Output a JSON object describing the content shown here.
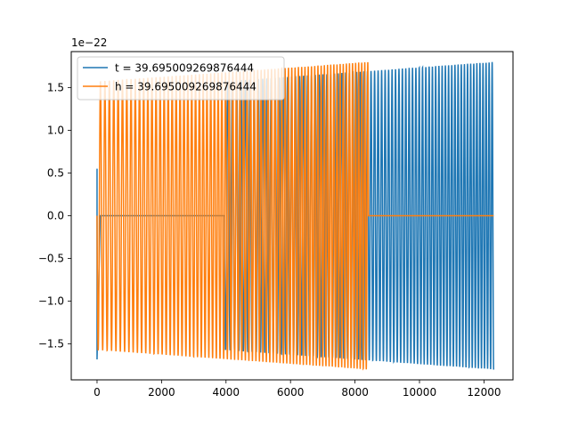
{
  "chart_data": {
    "type": "line",
    "title": "",
    "xlabel": "",
    "ylabel": "",
    "xlim": [
      -800,
      12900
    ],
    "ylim": [
      -1.92,
      1.92
    ],
    "y_offset_label": "1e−22",
    "x_ticks": [
      0,
      2000,
      4000,
      6000,
      8000,
      10000,
      12000
    ],
    "y_ticks": [
      -1.5,
      -1.0,
      -0.5,
      0.0,
      0.5,
      1.0,
      1.5
    ],
    "x_tick_labels": [
      "0",
      "2000",
      "4000",
      "6000",
      "8000",
      "10000",
      "12000"
    ],
    "y_tick_labels": [
      "−1.5",
      "−1.0",
      "−0.5",
      "0.0",
      "0.5",
      "1.0",
      "1.5"
    ],
    "grid": false,
    "legend_position": "top-left",
    "series": [
      {
        "name": "t = 39.695009269876444",
        "color": "#1f77b4",
        "style": "chirp",
        "x_start": 0,
        "x_end": 12300,
        "flat_until": 3950,
        "flat_value": 0.0,
        "amp_start": 1.57,
        "amp_end": 1.8,
        "cycles": 90
      },
      {
        "name": "h = 39.695009269876444",
        "color": "#ff7f0e",
        "style": "chirp",
        "x_start": 0,
        "x_end": 8420,
        "flat_from": 8420,
        "flat_to": 12300,
        "flat_value": 0.0,
        "amp_start": 1.57,
        "amp_end": 1.8,
        "cycles": 60
      }
    ]
  }
}
